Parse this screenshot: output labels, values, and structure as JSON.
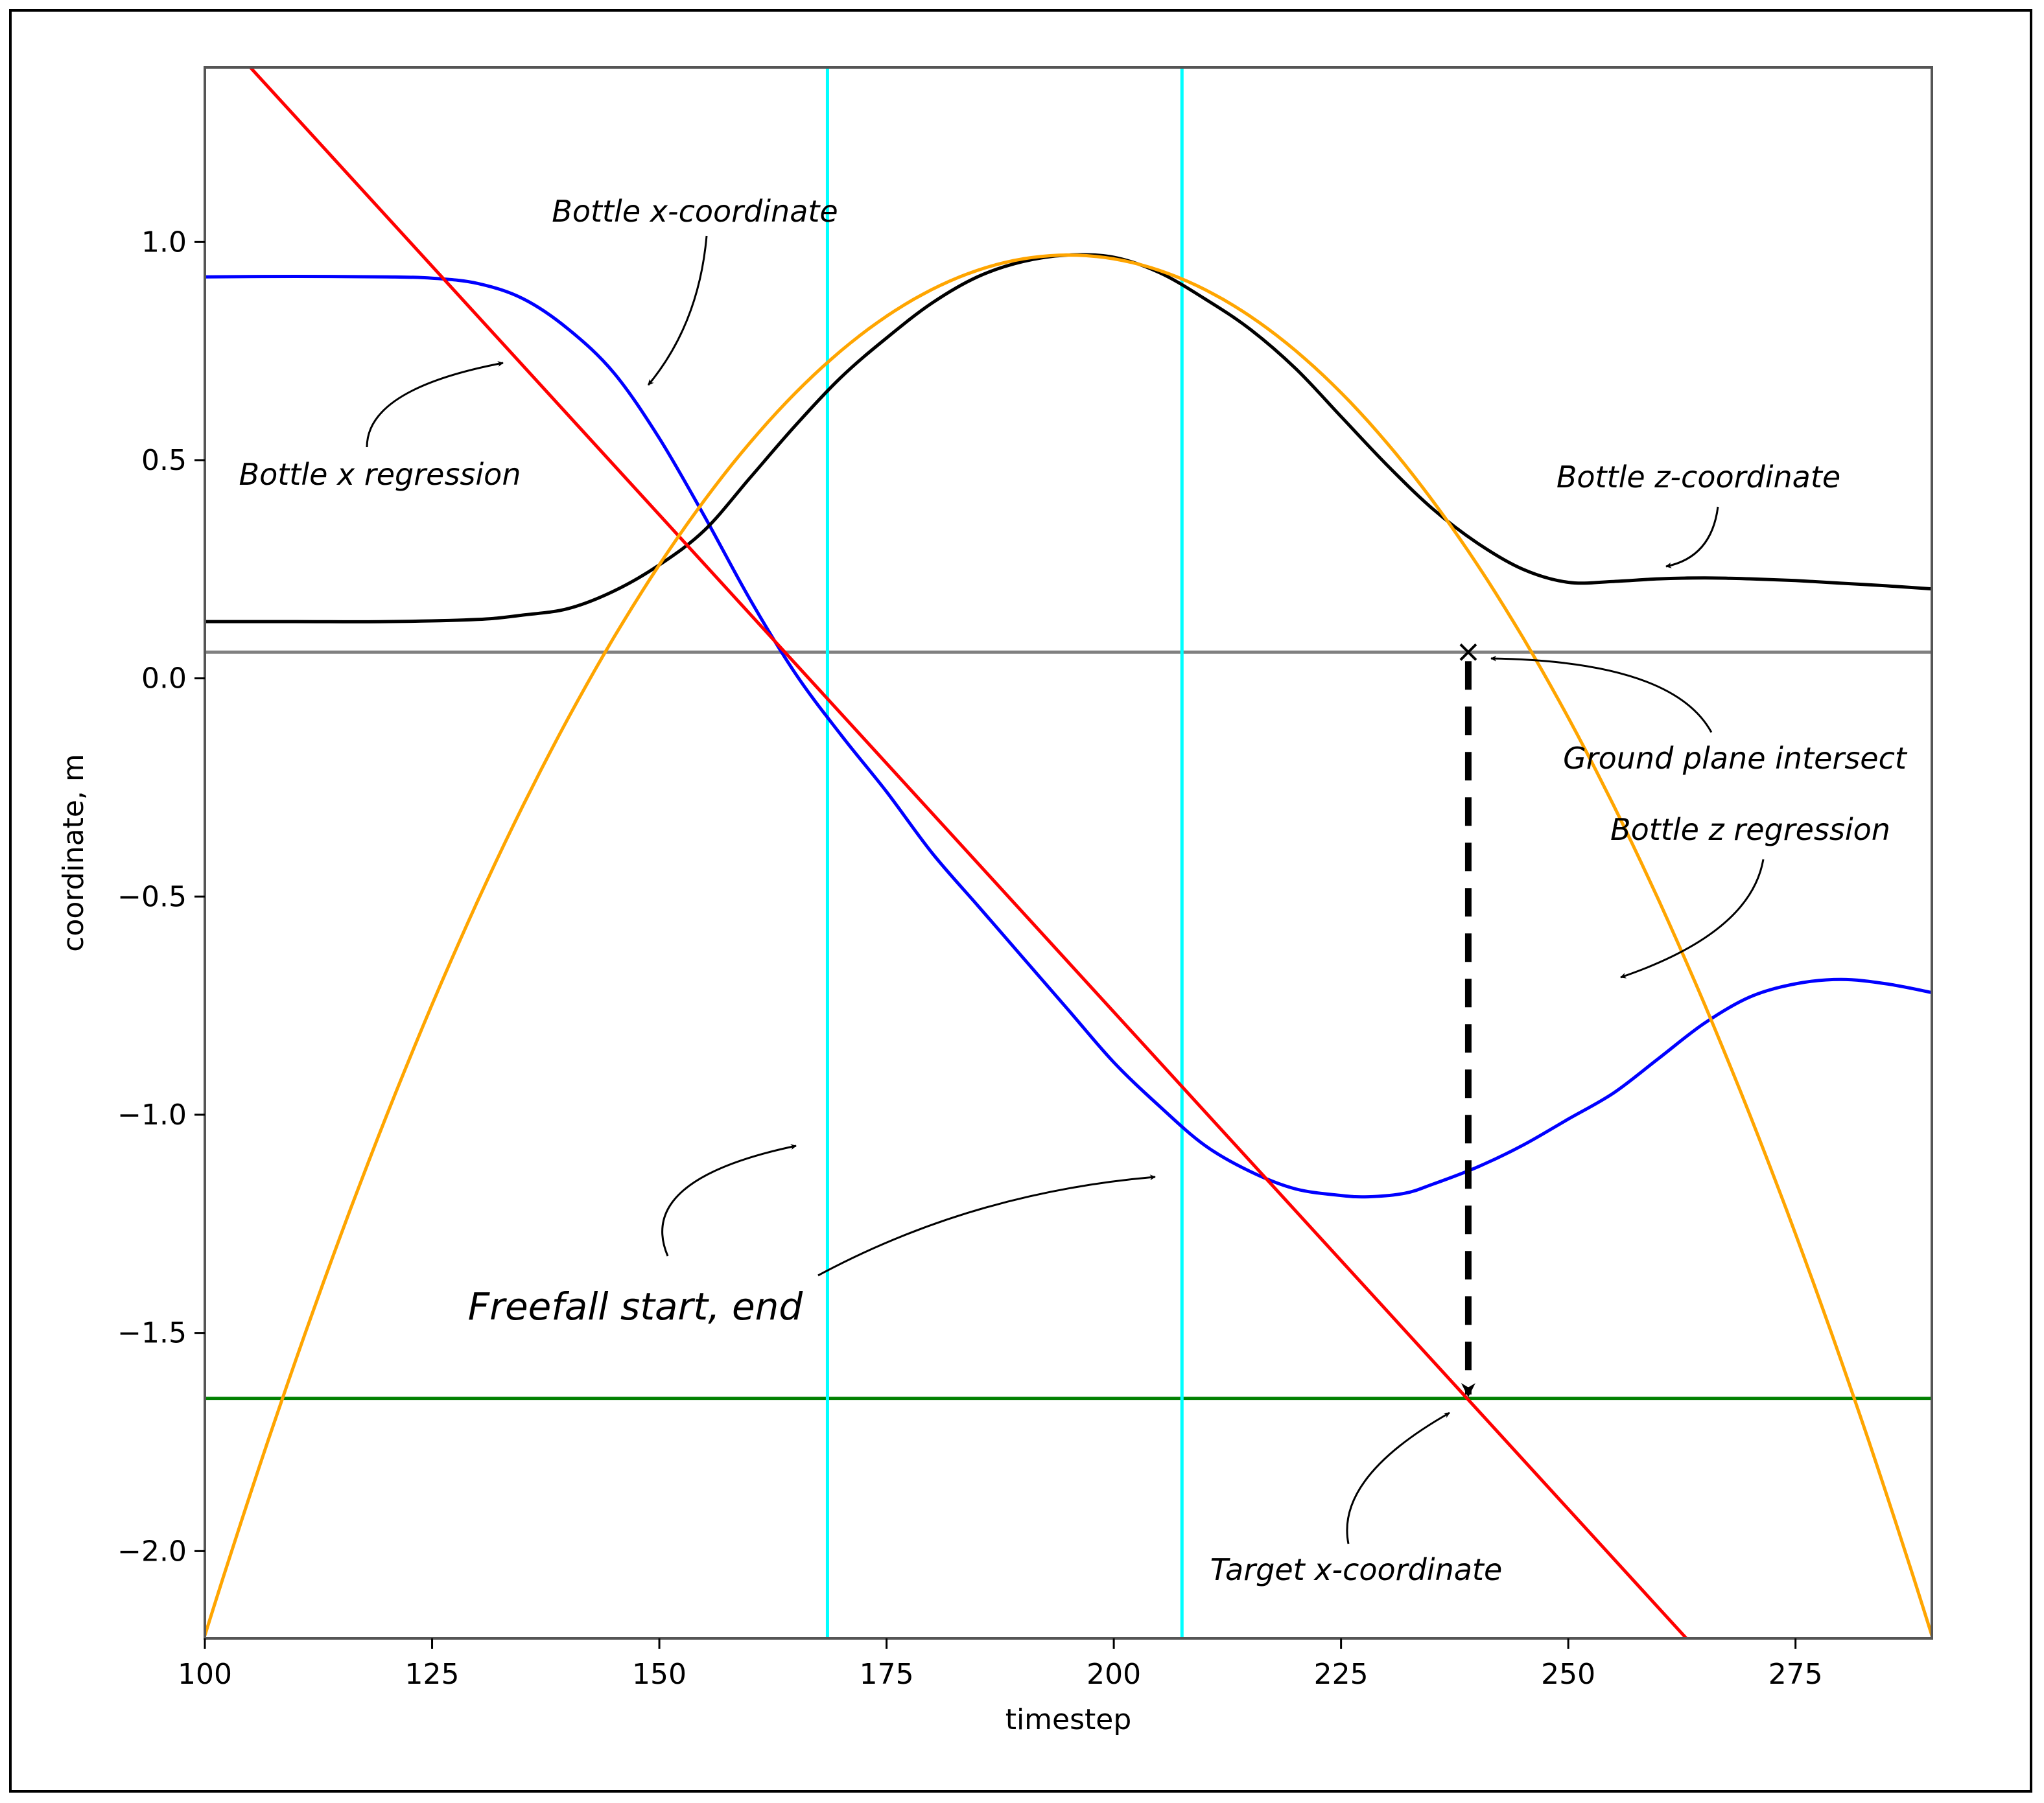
{
  "chart_data": {
    "type": "line",
    "title": "",
    "xlabel": "timestep",
    "ylabel": "coordinate, m",
    "xlim": [
      100,
      290
    ],
    "ylim": [
      -2.2,
      1.4
    ],
    "x_ticks": [
      100,
      125,
      150,
      175,
      200,
      225,
      250,
      275
    ],
    "y_ticks": [
      1.0,
      0.5,
      0.0,
      -0.5,
      -1.0,
      -1.5,
      -2.0
    ],
    "y_tick_labels": [
      "1.0",
      "0.5",
      "0.0",
      "−0.5",
      "−1.0",
      "−1.5",
      "−2.0"
    ],
    "grid": false,
    "series": [
      {
        "name": "Bottle x-coordinate",
        "color": "#0000ff",
        "x": [
          100,
          110,
          120,
          125,
          130,
          135,
          140,
          145,
          150,
          155,
          160,
          165,
          170,
          175,
          180,
          185,
          190,
          195,
          200,
          205,
          210,
          215,
          220,
          225,
          228,
          232,
          235,
          240,
          245,
          250,
          255,
          260,
          265,
          270,
          275,
          280,
          285,
          290
        ],
        "y": [
          0.92,
          0.921,
          0.92,
          0.917,
          0.905,
          0.87,
          0.8,
          0.7,
          0.55,
          0.37,
          0.18,
          0.01,
          -0.13,
          -0.26,
          -0.4,
          -0.52,
          -0.64,
          -0.76,
          -0.88,
          -0.98,
          -1.07,
          -1.13,
          -1.17,
          -1.185,
          -1.188,
          -1.18,
          -1.16,
          -1.12,
          -1.07,
          -1.01,
          -0.95,
          -0.87,
          -0.79,
          -0.73,
          -0.7,
          -0.69,
          -0.7,
          -0.72
        ]
      },
      {
        "name": "Bottle z-coordinate",
        "color": "#000000",
        "x": [
          100,
          110,
          120,
          130,
          135,
          140,
          145,
          150,
          155,
          160,
          165,
          170,
          175,
          180,
          185,
          190,
          195,
          200,
          205,
          210,
          215,
          220,
          225,
          230,
          235,
          240,
          245,
          250,
          255,
          260,
          265,
          270,
          275,
          280,
          285,
          290
        ],
        "y": [
          0.13,
          0.13,
          0.13,
          0.135,
          0.145,
          0.16,
          0.2,
          0.26,
          0.34,
          0.46,
          0.58,
          0.69,
          0.78,
          0.86,
          0.92,
          0.955,
          0.97,
          0.965,
          0.93,
          0.87,
          0.8,
          0.71,
          0.6,
          0.49,
          0.39,
          0.31,
          0.25,
          0.22,
          0.222,
          0.228,
          0.23,
          0.228,
          0.224,
          0.218,
          0.212,
          0.205
        ]
      },
      {
        "name": "Bottle x regression",
        "color": "#ff0000",
        "x": [
          105,
          263
        ],
        "y": [
          1.4,
          -2.2
        ]
      },
      {
        "name": "Bottle z regression",
        "color": "#ffa500",
        "vertex_x": 195,
        "vertex_y": 0.97,
        "curvature": 0.0003505
      },
      {
        "name": "Ground plane",
        "color": "#808080",
        "type": "hline",
        "y": 0.06
      },
      {
        "name": "Target x level",
        "color": "#008000",
        "type": "hline",
        "y": -1.65
      }
    ],
    "vlines": [
      {
        "name": "Freefall start",
        "color": "#00ffff",
        "x": 168.5
      },
      {
        "name": "Freefall end",
        "color": "#00ffff",
        "x": 207.5
      }
    ],
    "intersection": {
      "x": 239,
      "y_top": 0.06,
      "y_bottom": -1.65
    },
    "annotations": {
      "bottle_x_coordinate": "Bottle x-coordinate",
      "bottle_x_regression": "Bottle x regression",
      "bottle_z_coordinate": "Bottle z-coordinate",
      "ground_plane_intersect": "Ground plane intersect",
      "bottle_z_regression": "Bottle z regression",
      "freefall_start_end": "Freefall start, end",
      "target_x_coordinate": "Target x-coordinate"
    }
  }
}
